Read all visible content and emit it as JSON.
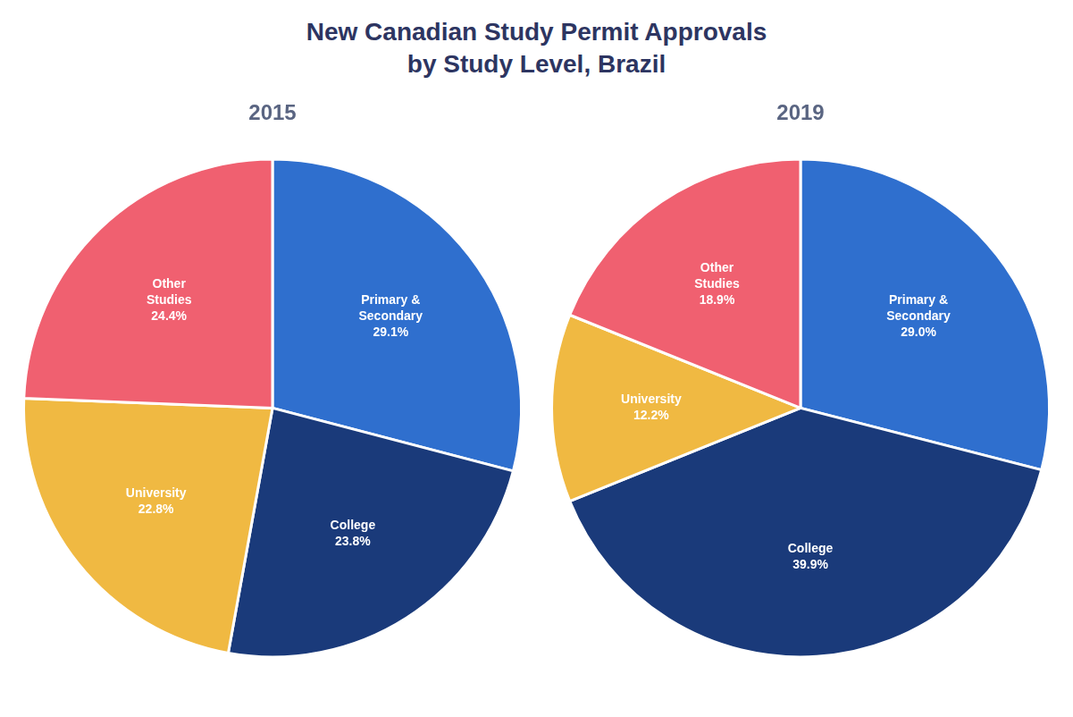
{
  "title": "New Canadian Study Permit Approvals\nby Study Level, Brazil",
  "chart_data": [
    {
      "type": "pie",
      "title": "2015",
      "categories": [
        "Primary &\nSecondary",
        "College",
        "University",
        "Other\nStudies"
      ],
      "values": [
        29.1,
        23.8,
        22.8,
        24.4
      ],
      "value_labels": [
        "29.1%",
        "23.8%",
        "22.8%",
        "24.4%"
      ],
      "colors": [
        "#2f6fce",
        "#1a3a7a",
        "#f0b942",
        "#f06070"
      ],
      "data_labels": true,
      "legend": false
    },
    {
      "type": "pie",
      "title": "2019",
      "categories": [
        "Primary &\nSecondary",
        "College",
        "University",
        "Other\nStudies"
      ],
      "values": [
        29.0,
        39.9,
        12.2,
        18.9
      ],
      "value_labels": [
        "29.0%",
        "39.9%",
        "12.2%",
        "18.9%"
      ],
      "colors": [
        "#2f6fce",
        "#1a3a7a",
        "#f0b942",
        "#f06070"
      ],
      "data_labels": true,
      "legend": false
    }
  ]
}
